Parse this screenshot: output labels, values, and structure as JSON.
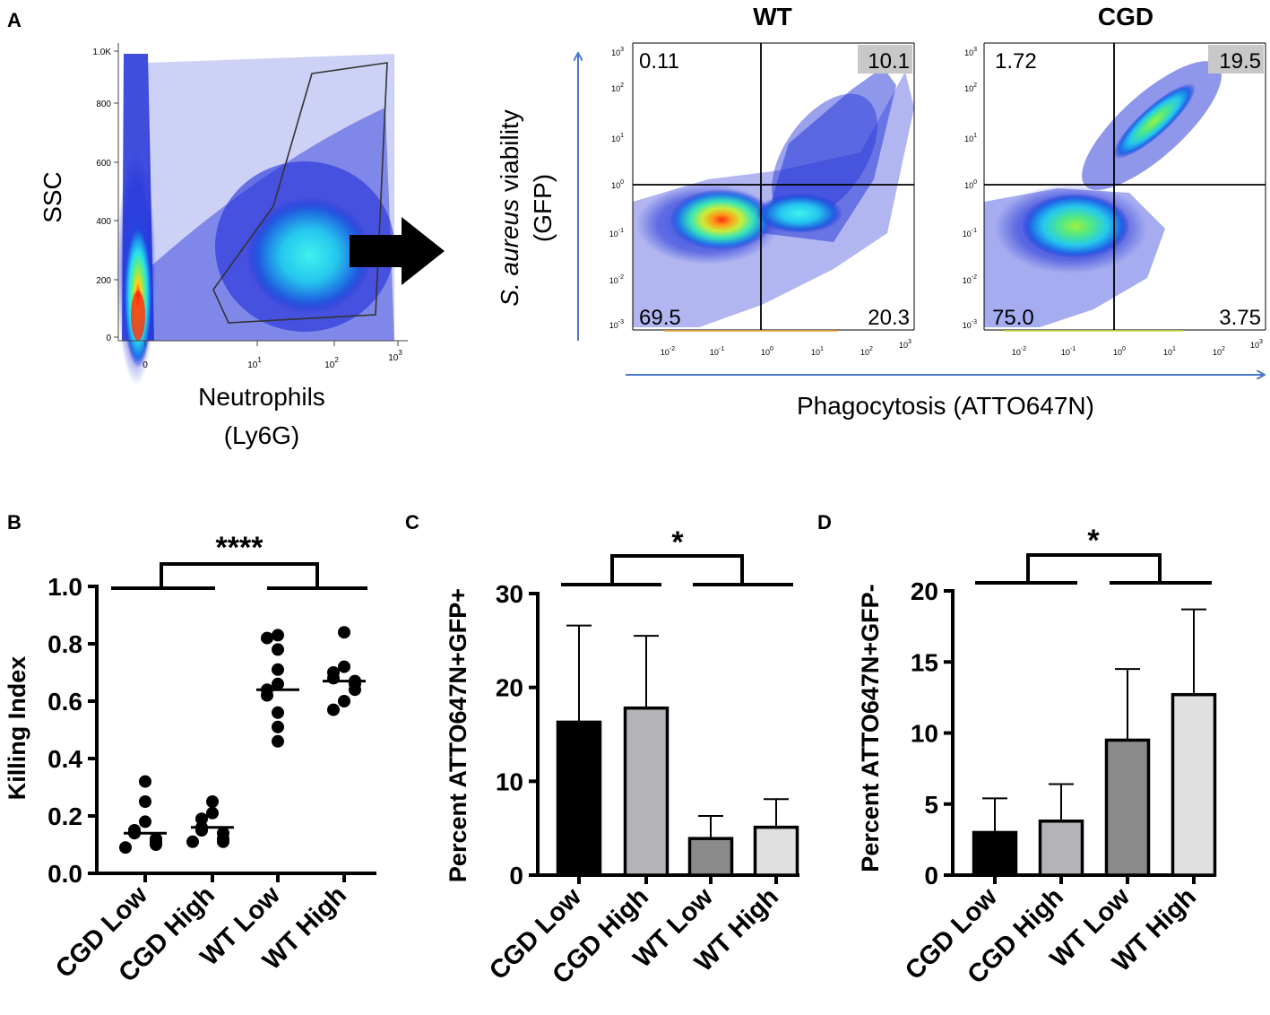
{
  "panel_letters": {
    "a": "A",
    "b": "B",
    "c": "C",
    "d": "D"
  },
  "colors": {
    "axis_blue": "#4a78c8",
    "density_low": "#1f2fd8",
    "density_mid": "#25e0ee",
    "density_high": "#ff2a10",
    "highlight": "#c8c8c8",
    "bar_cgd_low": "#000000",
    "bar_cgd_high": "#b3b3b8",
    "bar_wt_low": "#8a8a8a",
    "bar_wt_high": "#e0e0e0"
  },
  "panel_a": {
    "ssc_ylabel": "SSC",
    "ssc_yticks": [
      "1.0K",
      "800",
      "600",
      "400",
      "200",
      "0"
    ],
    "ssc_xticks": [
      "0",
      "10",
      "10",
      "10"
    ],
    "ssc_xtick_exp": [
      "",
      "1",
      "2",
      "3"
    ],
    "ssc_xlabel_line1": "Neutrophils",
    "ssc_xlabel_line2": "(Ly6G)",
    "y_arrow_label_italic": "S. aureus",
    "y_arrow_label_rest": "viability",
    "y_arrow_label_line2": "(GFP)",
    "x_arrow_label": "Phagocytosis (ATTO647N)",
    "log_base": "10",
    "yexp": [
      "3",
      "2",
      "1",
      "0",
      "-1",
      "-2",
      "-3"
    ],
    "xexp": [
      "-2",
      "-1",
      "0",
      "1",
      "2",
      "3"
    ],
    "wt": {
      "title": "WT",
      "q_ul": "0.11",
      "q_ur": "10.1",
      "q_ll": "69.5",
      "q_lr": "20.3"
    },
    "cgd": {
      "title": "CGD",
      "q_ul": "1.72",
      "q_ur": "19.5",
      "q_ll": "75.0",
      "q_lr": "3.75"
    }
  },
  "panel_b_significance": "****",
  "panel_c_significance": "*",
  "panel_d_significance": "*",
  "chart_data": [
    {
      "panel": "B",
      "type": "scatter",
      "title": "",
      "ylabel": "Killing Index",
      "xlabel": "",
      "ylim": [
        0.0,
        1.0
      ],
      "yticks": [
        "0.0",
        "0.2",
        "0.4",
        "0.6",
        "0.8",
        "1.0"
      ],
      "categories": [
        "CGD Low",
        "CGD High",
        "WT Low",
        "WT High"
      ],
      "points": [
        [
          0.32,
          0.25,
          0.18,
          0.15,
          0.14,
          0.12,
          0.11,
          0.1,
          0.09
        ],
        [
          0.25,
          0.21,
          0.19,
          0.16,
          0.15,
          0.14,
          0.12,
          0.11,
          0.11
        ],
        [
          0.83,
          0.82,
          0.78,
          0.71,
          0.66,
          0.64,
          0.62,
          0.56,
          0.51,
          0.46
        ],
        [
          0.84,
          0.72,
          0.7,
          0.68,
          0.67,
          0.66,
          0.64,
          0.6,
          0.57
        ]
      ],
      "medians": [
        0.14,
        0.16,
        0.64,
        0.67
      ],
      "annotations": [
        "****"
      ]
    },
    {
      "panel": "C",
      "type": "bar",
      "title": "",
      "ylabel": "Percent  ATTO647N+GFP+",
      "xlabel": "",
      "ylim": [
        0,
        30
      ],
      "yticks": [
        "0",
        "10",
        "20",
        "30"
      ],
      "categories": [
        "CGD Low",
        "CGD High",
        "WT Low",
        "WT High"
      ],
      "values": [
        16.3,
        17.8,
        3.9,
        5.1
      ],
      "errors": [
        10.3,
        7.7,
        2.4,
        3.0
      ],
      "annotations": [
        "*"
      ]
    },
    {
      "panel": "D",
      "type": "bar",
      "title": "",
      "ylabel": "Percent ATTO647N+GFP-",
      "xlabel": "",
      "ylim": [
        0,
        20
      ],
      "yticks": [
        "0",
        "5",
        "10",
        "15",
        "20"
      ],
      "categories": [
        "CGD Low",
        "CGD High",
        "WT Low",
        "WT High"
      ],
      "values": [
        3.0,
        3.8,
        9.5,
        12.7
      ],
      "errors": [
        2.4,
        2.6,
        5.0,
        6.0
      ],
      "annotations": [
        "*"
      ]
    }
  ]
}
